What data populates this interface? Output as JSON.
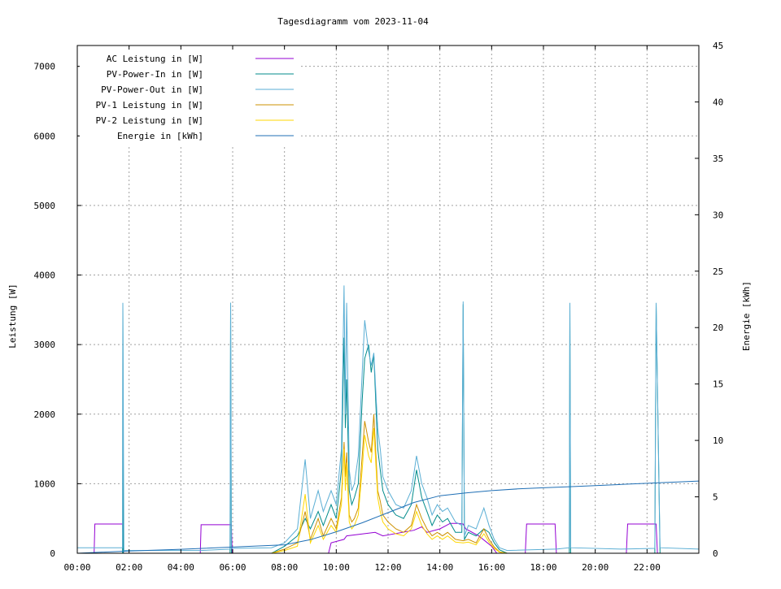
{
  "chart_data": {
    "type": "line",
    "title": "Tagesdiagramm vom 2023-11-04",
    "ylabel": "Leistung [W]",
    "y2label": "Energie [kWh]",
    "xlim": [
      0,
      24
    ],
    "ylim": [
      0,
      7300
    ],
    "y2lim": [
      0,
      45
    ],
    "x_ticks": [
      {
        "value": 0,
        "label": "00:00"
      },
      {
        "value": 2,
        "label": "02:00"
      },
      {
        "value": 4,
        "label": "04:00"
      },
      {
        "value": 6,
        "label": "06:00"
      },
      {
        "value": 8,
        "label": "08:00"
      },
      {
        "value": 10,
        "label": "10:00"
      },
      {
        "value": 12,
        "label": "12:00"
      },
      {
        "value": 14,
        "label": "14:00"
      },
      {
        "value": 16,
        "label": "16:00"
      },
      {
        "value": 18,
        "label": "18:00"
      },
      {
        "value": 20,
        "label": "20:00"
      },
      {
        "value": 22,
        "label": "22:00"
      }
    ],
    "y_ticks": [
      {
        "value": 0,
        "label": "0"
      },
      {
        "value": 1000,
        "label": "1000"
      },
      {
        "value": 2000,
        "label": "2000"
      },
      {
        "value": 3000,
        "label": "3000"
      },
      {
        "value": 4000,
        "label": "4000"
      },
      {
        "value": 5000,
        "label": "5000"
      },
      {
        "value": 6000,
        "label": "6000"
      },
      {
        "value": 7000,
        "label": "7000"
      }
    ],
    "y2_ticks": [
      {
        "value": 0,
        "label": "0"
      },
      {
        "value": 5,
        "label": "5"
      },
      {
        "value": 10,
        "label": "10"
      },
      {
        "value": 15,
        "label": "15"
      },
      {
        "value": 20,
        "label": "20"
      },
      {
        "value": 25,
        "label": "25"
      },
      {
        "value": 30,
        "label": "30"
      },
      {
        "value": 35,
        "label": "35"
      },
      {
        "value": 40,
        "label": "40"
      },
      {
        "value": 45,
        "label": "45"
      }
    ],
    "grid": true,
    "legend_position": "top-left",
    "series": [
      {
        "name": "AC Leistung in [W]",
        "color": "#9400d3",
        "axis": "y",
        "x": [
          0,
          0.65,
          0.68,
          1.75,
          1.78,
          2.2,
          2.23,
          4.75,
          4.78,
          5.95,
          5.98,
          9.7,
          9.8,
          10.3,
          10.4,
          11.5,
          11.8,
          13.0,
          13.3,
          13.5,
          14.0,
          14.4,
          14.7,
          14.9,
          15.0,
          15.5,
          16.0,
          16.2,
          17.3,
          17.35,
          18.45,
          18.5,
          21.2,
          21.25,
          22.35,
          22.4,
          24
        ],
        "y": [
          0,
          0,
          420,
          420,
          0,
          0,
          0,
          0,
          410,
          410,
          0,
          0,
          150,
          200,
          250,
          300,
          250,
          330,
          380,
          300,
          350,
          430,
          430,
          420,
          350,
          250,
          100,
          0,
          0,
          420,
          420,
          0,
          0,
          420,
          420,
          0,
          0
        ]
      },
      {
        "name": "PV-Power-In in [W]",
        "color": "#008b8b",
        "axis": "y",
        "x": [
          0,
          1.75,
          1.76,
          1.78,
          2.2,
          2.23,
          4.75,
          5.9,
          5.92,
          5.95,
          7.5,
          8.0,
          8.5,
          8.8,
          9.0,
          9.3,
          9.5,
          9.8,
          10.0,
          10.2,
          10.3,
          10.35,
          10.4,
          10.5,
          10.6,
          10.7,
          10.85,
          11.0,
          11.1,
          11.25,
          11.35,
          11.45,
          11.6,
          11.7,
          11.8,
          12.0,
          12.3,
          12.6,
          12.9,
          13.1,
          13.3,
          13.5,
          13.7,
          13.9,
          14.1,
          14.3,
          14.6,
          14.85,
          14.9,
          14.95,
          15.1,
          15.4,
          15.7,
          15.9,
          16.1,
          16.3,
          16.6,
          18.45,
          18.5,
          19.0,
          19.02,
          19.05,
          21.0,
          22.3,
          22.35,
          22.5,
          24
        ],
        "y": [
          0,
          0,
          3590,
          0,
          0,
          0,
          0,
          0,
          3600,
          0,
          0,
          100,
          250,
          500,
          350,
          600,
          400,
          700,
          500,
          1200,
          3100,
          1800,
          2500,
          900,
          700,
          800,
          1000,
          2200,
          2800,
          3000,
          2600,
          2850,
          1500,
          1200,
          900,
          700,
          550,
          500,
          700,
          1200,
          800,
          600,
          400,
          550,
          450,
          500,
          300,
          300,
          3580,
          200,
          300,
          250,
          350,
          300,
          150,
          50,
          0,
          0,
          0,
          0,
          3590,
          0,
          0,
          0,
          3590,
          0,
          0
        ]
      },
      {
        "name": "PV-Power-Out in [W]",
        "color": "#5aaed4",
        "axis": "y",
        "x": [
          0,
          1.75,
          1.76,
          1.78,
          1.8,
          2.2,
          4.75,
          5.9,
          5.92,
          5.95,
          7.5,
          8.0,
          8.5,
          8.8,
          9.0,
          9.3,
          9.5,
          9.8,
          10.0,
          10.2,
          10.3,
          10.35,
          10.4,
          10.5,
          10.6,
          10.7,
          10.85,
          11.0,
          11.1,
          11.25,
          11.35,
          11.45,
          11.6,
          11.7,
          11.8,
          12.0,
          12.3,
          12.6,
          12.9,
          13.1,
          13.3,
          13.5,
          13.7,
          13.9,
          14.1,
          14.3,
          14.6,
          14.85,
          14.9,
          14.95,
          15.1,
          15.4,
          15.7,
          15.9,
          16.1,
          16.3,
          16.6,
          18.45,
          18.5,
          19.0,
          19.02,
          19.05,
          21.0,
          22.3,
          22.35,
          22.5,
          24
        ],
        "y": [
          80,
          80,
          3600,
          1800,
          40,
          40,
          40,
          60,
          3600,
          70,
          80,
          150,
          350,
          1350,
          500,
          900,
          600,
          900,
          700,
          1500,
          3850,
          2000,
          3600,
          1200,
          900,
          1000,
          1400,
          2600,
          3350,
          2900,
          2700,
          2880,
          1800,
          1500,
          1100,
          900,
          700,
          650,
          900,
          1400,
          1000,
          800,
          550,
          700,
          600,
          650,
          450,
          400,
          3620,
          250,
          400,
          350,
          650,
          400,
          200,
          80,
          40,
          60,
          60,
          80,
          3600,
          80,
          60,
          70,
          3600,
          80,
          60
        ]
      },
      {
        "name": "PV-1 Leistung in [W]",
        "color": "#cd9000",
        "axis": "y",
        "x": [
          0,
          7.5,
          8.0,
          8.5,
          8.8,
          9.0,
          9.3,
          9.5,
          9.8,
          10.0,
          10.2,
          10.3,
          10.35,
          10.4,
          10.5,
          10.6,
          10.7,
          10.85,
          11.0,
          11.1,
          11.25,
          11.35,
          11.45,
          11.6,
          11.7,
          11.8,
          12.0,
          12.3,
          12.6,
          12.9,
          13.1,
          13.3,
          13.5,
          13.7,
          13.9,
          14.1,
          14.3,
          14.6,
          14.9,
          15.1,
          15.4,
          15.7,
          15.9,
          16.1,
          16.3,
          16.6,
          24
        ],
        "y": [
          0,
          0,
          60,
          150,
          600,
          200,
          500,
          250,
          500,
          350,
          800,
          1600,
          1100,
          1450,
          550,
          450,
          500,
          650,
          1400,
          1900,
          1600,
          1450,
          2000,
          900,
          750,
          550,
          450,
          350,
          300,
          400,
          700,
          500,
          350,
          250,
          300,
          250,
          300,
          200,
          180,
          200,
          150,
          350,
          200,
          90,
          20,
          0,
          0
        ]
      },
      {
        "name": "PV-2 Leistung in [W]",
        "color": "#ffd700",
        "axis": "y",
        "x": [
          0,
          7.5,
          8.0,
          8.5,
          8.8,
          9.0,
          9.3,
          9.5,
          9.8,
          10.0,
          10.2,
          10.3,
          10.35,
          10.4,
          10.5,
          10.6,
          10.7,
          10.85,
          11.0,
          11.1,
          11.25,
          11.35,
          11.45,
          11.6,
          11.7,
          11.8,
          12.0,
          12.3,
          12.6,
          12.9,
          13.1,
          13.3,
          13.5,
          13.7,
          13.9,
          14.1,
          14.3,
          14.6,
          14.9,
          15.1,
          15.4,
          15.7,
          15.9,
          16.1,
          16.3,
          16.6,
          24
        ],
        "y": [
          0,
          0,
          40,
          100,
          850,
          150,
          400,
          200,
          400,
          300,
          700,
          1500,
          900,
          1300,
          450,
          350,
          400,
          550,
          1200,
          1700,
          1400,
          1300,
          1800,
          800,
          600,
          450,
          350,
          280,
          250,
          350,
          600,
          400,
          280,
          200,
          250,
          200,
          250,
          160,
          150,
          160,
          120,
          280,
          160,
          70,
          15,
          0,
          0
        ]
      },
      {
        "name": "Energie in [kWh]",
        "color": "#1f6fb5",
        "axis": "y2",
        "x": [
          0,
          2.0,
          4.0,
          6.0,
          8.0,
          9.0,
          10.0,
          11.0,
          12.0,
          13.0,
          14.0,
          15.0,
          16.0,
          17.0,
          18.0,
          19.0,
          20.0,
          21.0,
          22.0,
          23.0,
          24.0
        ],
        "y": [
          0,
          0.2,
          0.35,
          0.55,
          0.75,
          1.2,
          1.9,
          2.7,
          3.6,
          4.5,
          5.1,
          5.35,
          5.55,
          5.7,
          5.8,
          5.9,
          6.0,
          6.1,
          6.2,
          6.3,
          6.4
        ]
      }
    ]
  }
}
